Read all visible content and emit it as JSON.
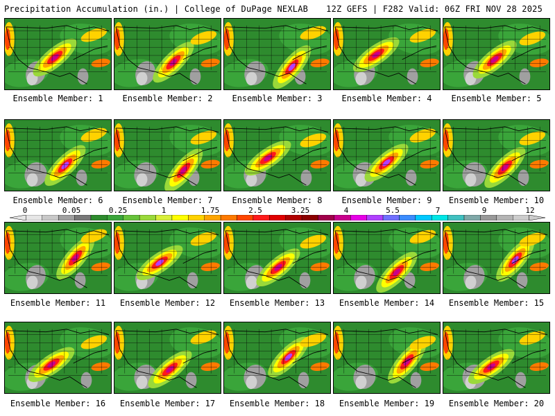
{
  "header": {
    "title_left": "Precipitation Accumulation (in.) | College of DuPage NEXLAB",
    "title_right": "12Z GEFS | F282 Valid: 06Z FRI NOV 28 2025"
  },
  "panel_label_prefix": "Ensemble Member:",
  "members": [
    {
      "label": "Ensemble Member: 1"
    },
    {
      "label": "Ensemble Member: 2"
    },
    {
      "label": "Ensemble Member: 3"
    },
    {
      "label": "Ensemble Member: 4"
    },
    {
      "label": "Ensemble Member: 5"
    },
    {
      "label": "Ensemble Member: 6"
    },
    {
      "label": "Ensemble Member: 7"
    },
    {
      "label": "Ensemble Member: 8"
    },
    {
      "label": "Ensemble Member: 9"
    },
    {
      "label": "Ensemble Member: 10"
    },
    {
      "label": "Ensemble Member: 11"
    },
    {
      "label": "Ensemble Member: 12"
    },
    {
      "label": "Ensemble Member: 13"
    },
    {
      "label": "Ensemble Member: 14"
    },
    {
      "label": "Ensemble Member: 15"
    },
    {
      "label": "Ensemble Member: 16"
    },
    {
      "label": "Ensemble Member: 17"
    },
    {
      "label": "Ensemble Member: 18"
    },
    {
      "label": "Ensemble Member: 19"
    },
    {
      "label": "Ensemble Member: 20"
    }
  ],
  "colorbar": {
    "tick_labels": [
      "0",
      "0.05",
      "0.25",
      "1",
      "1.75",
      "2.5",
      "3.25",
      "4",
      "5.5",
      "7",
      "9",
      "12"
    ],
    "colors": [
      "#e6e6e6",
      "#c8c8c8",
      "#a0a0a0",
      "#787878",
      "#2e8b2e",
      "#3aa53a",
      "#66c23a",
      "#9ad93a",
      "#d8ef3a",
      "#ffff00",
      "#ffd200",
      "#ffa500",
      "#ff7a00",
      "#ff4500",
      "#ff1a1a",
      "#e00000",
      "#b00000",
      "#8b0000",
      "#a0004a",
      "#c8008c",
      "#e600e6",
      "#b040ff",
      "#7070ff",
      "#3c8cff",
      "#00c8ff",
      "#00e6e6",
      "#40c0c0",
      "#7fa8a8",
      "#999999",
      "#b4b4b4",
      "#cccccc"
    ]
  }
}
